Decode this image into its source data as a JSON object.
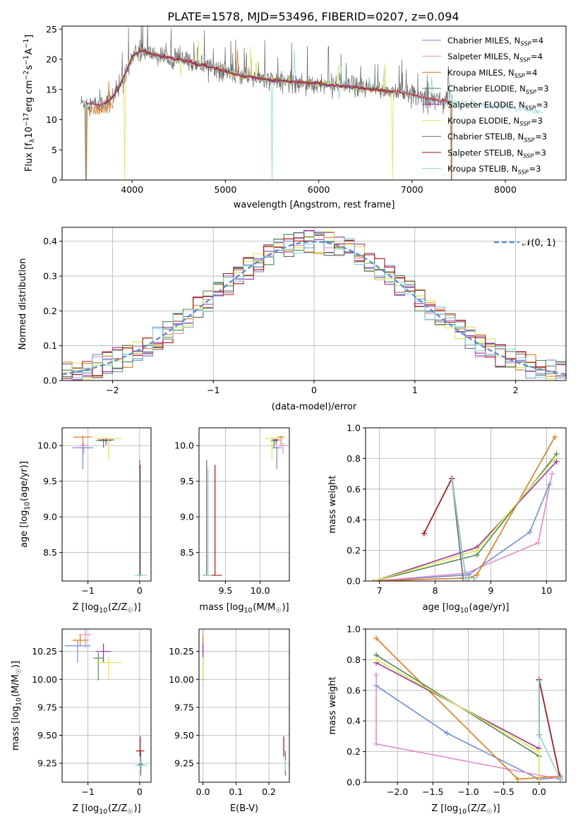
{
  "figure_title": "PLATE=1578, MJD=53496, FIBERID=0207, z=0.094",
  "colors": {
    "Chabrier MILES": "#6a8fd8",
    "Salpeter MILES": "#e58ac6",
    "Kroupa MILES": "#e07b1a",
    "Chabrier ELODIE": "#4e8a4e",
    "Salpeter ELODIE": "#9b30a6",
    "Kroupa ELODIE": "#dde84a",
    "Chabrier STELIB": "#666666",
    "Salpeter STELIB": "#b01010",
    "Kroupa STELIB": "#86d6d6",
    "gauss": "#5b8fd9"
  },
  "chart_data": [
    {
      "id": "spectrum",
      "type": "line",
      "xlabel": "wavelength [Angstrom, rest frame]",
      "ylabel": "Flux [f",
      "ylabel_sub": "λ",
      "ylabel_rest": "10",
      "ylabel_exp": "−17",
      "ylabel_unit": " erg cm",
      "ylabel_unit_exp": "−2",
      "ylabel_unit2": " s",
      "ylabel_unit2_exp": "−1",
      "ylabel_unit3": " A",
      "ylabel_unit3_exp": "−1",
      "ylabel_close": "]",
      "xlim": [
        3250,
        8650
      ],
      "ylim": [
        0,
        25.5
      ],
      "xticks": [
        4000,
        5000,
        6000,
        7000,
        8000
      ],
      "yticks": [
        0,
        5,
        10,
        15,
        20,
        25
      ],
      "grid": false,
      "legend_position": "top-right",
      "legend": [
        {
          "name": "Chabrier MILES, N",
          "sub": "SSP",
          "tail": "=4"
        },
        {
          "name": "Salpeter MILES, N",
          "sub": "SSP",
          "tail": "=4"
        },
        {
          "name": "Kroupa MILES, N",
          "sub": "SSP",
          "tail": "=4"
        },
        {
          "name": "Chabrier ELODIE, N",
          "sub": "SSP",
          "tail": "=3"
        },
        {
          "name": "Salpeter ELODIE, N",
          "sub": "SSP",
          "tail": "=3"
        },
        {
          "name": "Kroupa ELODIE, N",
          "sub": "SSP",
          "tail": "=3"
        },
        {
          "name": "Chabrier STELIB, N",
          "sub": "SSP",
          "tail": "=3"
        },
        {
          "name": "Salpeter STELIB, N",
          "sub": "SSP",
          "tail": "=3"
        },
        {
          "name": "Kroupa STELIB, N",
          "sub": "SSP",
          "tail": "=3"
        }
      ],
      "continuum": [
        [
          3500,
          12.8
        ],
        [
          3650,
          12.4
        ],
        [
          3750,
          13.0
        ],
        [
          3850,
          15.0
        ],
        [
          3950,
          18.5
        ],
        [
          4000,
          20.5
        ],
        [
          4100,
          21.5
        ],
        [
          4200,
          21.0
        ],
        [
          4300,
          20.5
        ],
        [
          4500,
          20.0
        ],
        [
          4700,
          19.2
        ],
        [
          4900,
          18.5
        ],
        [
          5100,
          17.5
        ],
        [
          5300,
          17.0
        ],
        [
          5500,
          16.5
        ],
        [
          5800,
          16.2
        ],
        [
          6000,
          16.0
        ],
        [
          6300,
          15.5
        ],
        [
          6600,
          15.0
        ],
        [
          6900,
          14.5
        ],
        [
          7200,
          13.5
        ],
        [
          7400,
          13.0
        ],
        [
          7700,
          12.5
        ],
        [
          8000,
          12.0
        ],
        [
          8400,
          11.3
        ]
      ]
    },
    {
      "id": "residuals",
      "type": "bar",
      "xlabel": "(data-model)/error",
      "ylabel": "Normed distribution",
      "xlim": [
        -2.5,
        2.5
      ],
      "ylim": [
        0,
        0.44
      ],
      "xticks": [
        -2,
        -1,
        0,
        1,
        2
      ],
      "yticks": [
        0.0,
        0.1,
        0.2,
        0.3,
        0.4
      ],
      "grid": true,
      "legend_position": "top-right",
      "legend": [
        {
          "name": "𝒩(0, 1)"
        }
      ],
      "bin_width": 0.1
    },
    {
      "id": "age_vs_Z",
      "type": "scatter",
      "xlabel": "Z [log",
      "xlabel_sub": "10",
      "xlabel_rest": "(Z/Z",
      "xlabel_sun": "☉",
      "xlabel_close": ")]",
      "ylabel": "age  [log",
      "ylabel_sub": "10",
      "ylabel_rest": "(age/yr)]",
      "xlim": [
        -1.5,
        0.22
      ],
      "ylim": [
        8.1,
        10.25
      ],
      "xticks": [
        -1,
        0
      ],
      "yticks": [
        8.5,
        9.0,
        9.5,
        10.0
      ],
      "grid": true,
      "points": [
        {
          "s": "Chabrier MILES",
          "x": -1.1,
          "y": 9.97,
          "xe": 0.2,
          "yl": 0.3,
          "yh": 0.02
        },
        {
          "s": "Salpeter MILES",
          "x": -1.08,
          "y": 10.0,
          "xe": 0.08,
          "yl": 0.12,
          "yh": 0.04
        },
        {
          "s": "Kroupa MILES",
          "x": -1.1,
          "y": 10.12,
          "xe": 0.18,
          "yl": 0.12,
          "yh": 0.02
        },
        {
          "s": "Chabrier ELODIE",
          "x": -0.7,
          "y": 10.07,
          "xe": 0.15,
          "yl": 0.1,
          "yh": 0.03
        },
        {
          "s": "Salpeter ELODIE",
          "x": -0.65,
          "y": 10.08,
          "xe": 0.15,
          "yl": 0.07,
          "yh": 0.03
        },
        {
          "s": "Kroupa ELODIE",
          "x": -0.6,
          "y": 10.1,
          "xe": 0.25,
          "yl": 0.3,
          "yh": 0.02
        },
        {
          "s": "Chabrier STELIB",
          "x": 0.0,
          "y": 8.18,
          "xe": 0.05,
          "yl": 0.0,
          "yh": 1.62
        },
        {
          "s": "Salpeter STELIB",
          "x": 0.01,
          "y": 8.18,
          "xe": 0.05,
          "yl": 0.0,
          "yh": 1.55
        },
        {
          "s": "Kroupa STELIB",
          "x": 0.02,
          "y": 8.18,
          "xe": 0.12,
          "yl": 0.0,
          "yh": 1.5
        }
      ]
    },
    {
      "id": "age_vs_mass",
      "type": "scatter",
      "xlabel": "mass [log",
      "xlabel_sub": "10",
      "xlabel_rest": "(M/M",
      "xlabel_sun": "☉",
      "xlabel_close": ")]",
      "xlim": [
        9.12,
        10.42
      ],
      "ylim": [
        8.1,
        10.25
      ],
      "xticks": [
        9.5,
        10.0
      ],
      "xtick_labels": [
        "9.5",
        "10.0"
      ],
      "yticks": [
        8.5,
        9.0,
        9.5,
        10.0
      ],
      "grid": true,
      "points": [
        {
          "s": "Chabrier MILES",
          "x": 10.24,
          "y": 9.97,
          "xe": 0.07,
          "yl": 0.3,
          "yh": 0.02
        },
        {
          "s": "Salpeter MILES",
          "x": 10.33,
          "y": 10.0,
          "xe": 0.07,
          "yl": 0.12,
          "yh": 0.04
        },
        {
          "s": "Kroupa MILES",
          "x": 10.3,
          "y": 10.12,
          "xe": 0.05,
          "yl": 0.12,
          "yh": 0.02
        },
        {
          "s": "Chabrier ELODIE",
          "x": 10.2,
          "y": 10.07,
          "xe": 0.05,
          "yl": 0.1,
          "yh": 0.03
        },
        {
          "s": "Salpeter ELODIE",
          "x": 10.23,
          "y": 10.08,
          "xe": 0.05,
          "yl": 0.07,
          "yh": 0.03
        },
        {
          "s": "Kroupa ELODIE",
          "x": 10.17,
          "y": 10.1,
          "xe": 0.1,
          "yl": 0.3,
          "yh": 0.02
        },
        {
          "s": "Chabrier STELIB",
          "x": 9.23,
          "y": 8.18,
          "xe": 0.05,
          "yl": 0.0,
          "yh": 1.62
        },
        {
          "s": "Salpeter STELIB",
          "x": 9.35,
          "y": 8.18,
          "xe": 0.1,
          "yl": 0.0,
          "yh": 1.55
        },
        {
          "s": "Kroupa STELIB",
          "x": 9.25,
          "y": 8.18,
          "xe": 0.05,
          "yl": 0.0,
          "yh": 1.5
        }
      ]
    },
    {
      "id": "weight_vs_age",
      "type": "line",
      "xlabel": "age  [log",
      "xlabel_sub": "10",
      "xlabel_rest": "(age/yr)]",
      "ylabel": "mass weight",
      "xlim": [
        6.75,
        10.35
      ],
      "ylim": [
        0,
        1.0
      ],
      "xticks": [
        7,
        8,
        9,
        10
      ],
      "yticks": [
        0.0,
        0.2,
        0.4,
        0.6,
        0.8,
        1.0
      ],
      "grid": true,
      "series": [
        {
          "name": "Chabrier MILES",
          "x": [
            6.9,
            8.6,
            9.7,
            10.05
          ],
          "y": [
            0.0,
            0.04,
            0.32,
            0.63
          ]
        },
        {
          "name": "Salpeter MILES",
          "x": [
            6.9,
            8.55,
            9.85,
            10.1
          ],
          "y": [
            0.0,
            0.05,
            0.25,
            0.7
          ]
        },
        {
          "name": "Kroupa MILES",
          "x": [
            6.9,
            8.6,
            8.75,
            10.15
          ],
          "y": [
            0.0,
            0.02,
            0.04,
            0.94
          ]
        },
        {
          "name": "Chabrier ELODIE",
          "x": [
            6.9,
            8.75,
            10.18
          ],
          "y": [
            0.0,
            0.17,
            0.83
          ]
        },
        {
          "name": "Salpeter ELODIE",
          "x": [
            6.9,
            8.75,
            10.18
          ],
          "y": [
            0.0,
            0.22,
            0.78
          ]
        },
        {
          "name": "Kroupa ELODIE",
          "x": [
            6.9,
            8.75,
            10.15
          ],
          "y": [
            0.0,
            0.2,
            0.8
          ]
        },
        {
          "name": "Chabrier STELIB",
          "x": [
            7.8,
            8.3,
            8.5,
            8.7
          ],
          "y": [
            0.31,
            0.67,
            0.02,
            0.02
          ]
        },
        {
          "name": "Salpeter STELIB",
          "x": [
            7.8,
            8.3,
            8.55,
            8.7
          ],
          "y": [
            0.31,
            0.67,
            0.02,
            0.02
          ]
        },
        {
          "name": "Kroupa STELIB",
          "x": [
            8.3,
            8.55,
            8.7
          ],
          "y": [
            0.66,
            0.02,
            0.02
          ]
        }
      ]
    },
    {
      "id": "mass_vs_Z",
      "type": "scatter",
      "xlabel": "Z [log",
      "xlabel_sub": "10",
      "xlabel_rest": "(Z/Z",
      "xlabel_sun": "☉",
      "xlabel_close": ")]",
      "ylabel": "mass [log",
      "ylabel_sub": "10",
      "ylabel_rest": "(M/M",
      "ylabel_sun": "☉",
      "ylabel_close": ")]",
      "xlim": [
        -1.5,
        0.22
      ],
      "ylim": [
        9.08,
        10.45
      ],
      "xticks": [
        -1,
        0
      ],
      "yticks": [
        9.25,
        9.5,
        9.75,
        10.0,
        10.25
      ],
      "grid": true,
      "points": [
        {
          "s": "Chabrier MILES",
          "x": -1.2,
          "y": 10.3,
          "xe": 0.25,
          "yl": 0.15,
          "yh": 0.05
        },
        {
          "s": "Salpeter MILES",
          "x": -1.05,
          "y": 10.4,
          "xe": 0.12,
          "yl": 0.12,
          "yh": 0.05
        },
        {
          "s": "Kroupa MILES",
          "x": -1.15,
          "y": 10.35,
          "xe": 0.15,
          "yl": 0.05,
          "yh": 0.05
        },
        {
          "s": "Chabrier ELODIE",
          "x": -0.8,
          "y": 10.19,
          "xe": 0.1,
          "yl": 0.2,
          "yh": 0.05
        },
        {
          "s": "Salpeter ELODIE",
          "x": -0.7,
          "y": 10.25,
          "xe": 0.15,
          "yl": 0.1,
          "yh": 0.07
        },
        {
          "s": "Kroupa ELODIE",
          "x": -0.6,
          "y": 10.15,
          "xe": 0.25,
          "yl": 0.15,
          "yh": 0.05
        },
        {
          "s": "Chabrier STELIB",
          "x": 0.02,
          "y": 9.24,
          "xe": 0.05,
          "yl": 0.1,
          "yh": 0.12
        },
        {
          "s": "Salpeter STELIB",
          "x": 0.01,
          "y": 9.36,
          "xe": 0.08,
          "yl": 0.05,
          "yh": 0.13
        },
        {
          "s": "Kroupa STELIB",
          "x": 0.03,
          "y": 9.23,
          "xe": 0.12,
          "yl": 0.05,
          "yh": 0.05
        }
      ]
    },
    {
      "id": "mass_vs_EBV",
      "type": "scatter",
      "xlabel": "E(B-V)",
      "xlim": [
        -0.012,
        0.262
      ],
      "ylim": [
        9.08,
        10.45
      ],
      "xticks": [
        0.0,
        0.1,
        0.2
      ],
      "yticks": [
        9.25,
        9.5,
        9.75,
        10.0,
        10.25
      ],
      "grid": true,
      "points": [
        {
          "s": "Chabrier MILES",
          "x": 0.0,
          "y": 10.3,
          "xe": 0,
          "yl": 0.15,
          "yh": 0.05
        },
        {
          "s": "Salpeter MILES",
          "x": 0.0,
          "y": 10.4,
          "xe": 0,
          "yl": 0.12,
          "yh": 0.05
        },
        {
          "s": "Kroupa MILES",
          "x": 0.0,
          "y": 10.35,
          "xe": 0,
          "yl": 0.05,
          "yh": 0.05
        },
        {
          "s": "Chabrier ELODIE",
          "x": 0.0,
          "y": 10.19,
          "xe": 0,
          "yl": 0.2,
          "yh": 0.05
        },
        {
          "s": "Salpeter ELODIE",
          "x": 0.0,
          "y": 10.25,
          "xe": 0,
          "yl": 0.1,
          "yh": 0.07
        },
        {
          "s": "Kroupa ELODIE",
          "x": 0.0,
          "y": 10.15,
          "xe": 0,
          "yl": 0.15,
          "yh": 0.05
        },
        {
          "s": "Chabrier STELIB",
          "x": 0.25,
          "y": 9.24,
          "xe": 0,
          "yl": 0.1,
          "yh": 0.12
        },
        {
          "s": "Salpeter STELIB",
          "x": 0.245,
          "y": 9.36,
          "xe": 0,
          "yl": 0.05,
          "yh": 0.13
        },
        {
          "s": "Kroupa STELIB",
          "x": 0.25,
          "y": 9.23,
          "xe": 0,
          "yl": 0.05,
          "yh": 0.05
        }
      ]
    },
    {
      "id": "weight_vs_Z",
      "type": "line",
      "xlabel": "Z [log",
      "xlabel_sub": "10",
      "xlabel_rest": "(Z/Z",
      "xlabel_sun": "☉",
      "xlabel_close": ")]",
      "ylabel": "mass weight",
      "xlim": [
        -2.45,
        0.38
      ],
      "ylim": [
        0,
        1.0
      ],
      "xticks": [
        -2.0,
        -1.5,
        -1.0,
        -0.5,
        0.0
      ],
      "xtick_labels": [
        "−2.0",
        "−1.5",
        "−1.0",
        "−0.5",
        "0.0"
      ],
      "yticks": [
        0.0,
        0.2,
        0.4,
        0.6,
        0.8,
        1.0
      ],
      "grid": true,
      "series": [
        {
          "name": "Chabrier MILES",
          "x": [
            -2.3,
            -1.3,
            0.0,
            0.3
          ],
          "y": [
            0.63,
            0.32,
            0.02,
            0.03
          ]
        },
        {
          "name": "Salpeter MILES",
          "x": [
            -2.3,
            -2.3,
            0.3,
            0.3
          ],
          "y": [
            0.7,
            0.25,
            0.02,
            0.04
          ]
        },
        {
          "name": "Kroupa MILES",
          "x": [
            -2.3,
            -0.3,
            0.3
          ],
          "y": [
            0.94,
            0.02,
            0.04
          ]
        },
        {
          "name": "Chabrier ELODIE",
          "x": [
            -2.3,
            0.0
          ],
          "y": [
            0.83,
            0.17
          ]
        },
        {
          "name": "Salpeter ELODIE",
          "x": [
            -2.3,
            0.0
          ],
          "y": [
            0.78,
            0.22
          ]
        },
        {
          "name": "Kroupa ELODIE",
          "x": [
            -2.3,
            0.0,
            0.0
          ],
          "y": [
            0.8,
            0.2,
            0.0
          ]
        },
        {
          "name": "Chabrier STELIB",
          "x": [
            0.0,
            0.0,
            0.3,
            0.3
          ],
          "y": [
            0.31,
            0.67,
            0.02,
            0.02
          ]
        },
        {
          "name": "Salpeter STELIB",
          "x": [
            0.0,
            0.0,
            0.3
          ],
          "y": [
            0.31,
            0.67,
            0.02
          ]
        },
        {
          "name": "Kroupa STELIB",
          "x": [
            0.0,
            0.0,
            0.3
          ],
          "y": [
            0.66,
            0.31,
            0.02
          ]
        }
      ]
    }
  ]
}
